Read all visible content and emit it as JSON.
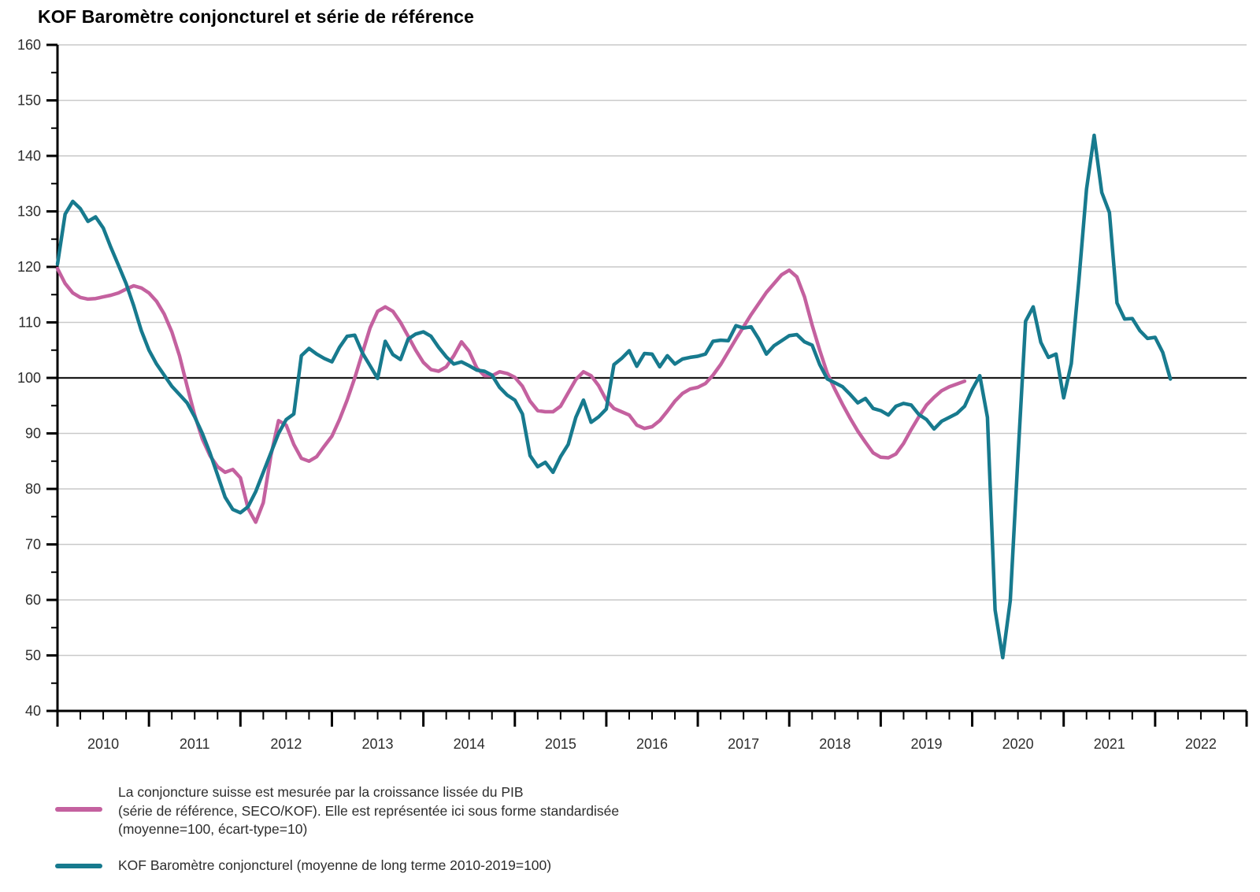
{
  "title": "KOF Baromètre conjoncturel et série de référence",
  "legend": {
    "reference_label": "La conjoncture suisse est mesurée par la croissance lissée du PIB\n(série de référence, SECO/KOF). Elle est représentée ici sous forme standardisée\n(moyenne=100, écart-type=10)",
    "barometer_label": "KOF Baromètre conjoncturel (moyenne de long terme 2010-2019=100)"
  },
  "colors": {
    "reference": "#C4619F",
    "barometer": "#177A8E",
    "grid": "#c9c9c9",
    "reference_line_100": "#1a1a1a",
    "axis": "#000000",
    "tick_label": "#2d2d2d"
  },
  "chart_data": {
    "type": "line",
    "title": "KOF Baromètre conjoncturel et série de référence",
    "xlabel": "",
    "ylabel": "",
    "x_axis": {
      "unit": "months since 2010-01",
      "axis_start_year": 2010,
      "axis_end_year": 2023,
      "year_labels": [
        "2010",
        "2011",
        "2012",
        "2013",
        "2014",
        "2015",
        "2016",
        "2017",
        "2018",
        "2019",
        "2020",
        "2021",
        "2022"
      ],
      "minor_ticks": "quarterly",
      "major_ticks": "yearly"
    },
    "y_axis": {
      "min": 40,
      "max": 160,
      "major_tick_step": 10,
      "minor_tick_step": 5,
      "tick_labels": [
        40,
        50,
        60,
        70,
        80,
        90,
        100,
        110,
        120,
        130,
        140,
        150,
        160
      ],
      "reference_line": 100
    },
    "grid": true,
    "legend_position": "bottom-left",
    "series": [
      {
        "name": "reference",
        "label": "La conjoncture suisse est mesurée par la croissance lissée du PIB (série de référence, SECO/KOF), forme standardisée (moyenne=100, écart-type=10)",
        "color": "#C4619F",
        "start": "2010-01",
        "end": "2019-12",
        "frequency": "monthly",
        "values": [
          119.7,
          117.0,
          115.3,
          114.5,
          114.2,
          114.3,
          114.6,
          114.9,
          115.3,
          116.0,
          116.6,
          116.2,
          115.3,
          113.8,
          111.5,
          108.3,
          104.0,
          98.5,
          93.3,
          89.0,
          86.0,
          84.0,
          83.0,
          83.5,
          82.0,
          76.5,
          74.0,
          77.5,
          86.0,
          92.3,
          91.5,
          88.0,
          85.5,
          85.0,
          85.8,
          87.7,
          89.5,
          92.5,
          96.0,
          100.0,
          104.5,
          109.0,
          112.0,
          112.8,
          112.0,
          110.0,
          107.5,
          105.0,
          102.8,
          101.5,
          101.2,
          102.0,
          104.0,
          106.5,
          104.8,
          101.8,
          100.4,
          100.4,
          101.1,
          100.8,
          100.1,
          98.5,
          95.8,
          94.1,
          93.9,
          93.9,
          94.9,
          97.3,
          99.7,
          101.1,
          100.4,
          98.6,
          96.0,
          94.5,
          93.9,
          93.3,
          91.5,
          90.9,
          91.2,
          92.3,
          94.0,
          95.8,
          97.2,
          98.0,
          98.3,
          99.0,
          100.5,
          102.4,
          104.7,
          107.0,
          109.2,
          111.4,
          113.4,
          115.4,
          117.0,
          118.6,
          119.4,
          118.2,
          114.6,
          109.5,
          105.0,
          100.8,
          97.9,
          95.2,
          92.7,
          90.4,
          88.4,
          86.5,
          85.7,
          85.6,
          86.3,
          88.2,
          90.7,
          93.0,
          95.1,
          96.5,
          97.7,
          98.4,
          98.9,
          99.4
        ]
      },
      {
        "name": "barometer",
        "label": "KOF Baromètre conjoncturel (moyenne de long terme 2010-2019=100)",
        "color": "#177A8E",
        "start": "2010-01",
        "end": "2022-03",
        "frequency": "monthly",
        "values": [
          120.5,
          129.5,
          131.8,
          130.5,
          128.2,
          129.0,
          127.0,
          123.5,
          120.3,
          117.0,
          113.0,
          108.5,
          105.0,
          102.5,
          100.5,
          98.5,
          97.0,
          95.5,
          93.0,
          90.0,
          86.5,
          82.5,
          78.5,
          76.3,
          75.7,
          76.8,
          79.5,
          83.0,
          86.5,
          90.0,
          92.5,
          93.5,
          104.0,
          105.3,
          104.3,
          103.5,
          102.9,
          105.5,
          107.5,
          107.7,
          104.5,
          102.2,
          99.9,
          106.6,
          104.2,
          103.3,
          107.0,
          107.9,
          108.3,
          107.5,
          105.5,
          103.8,
          102.5,
          102.9,
          102.2,
          101.4,
          101.2,
          100.5,
          98.3,
          96.9,
          96.0,
          93.5,
          86.0,
          84.0,
          84.8,
          83.0,
          85.8,
          88.0,
          92.9,
          96.0,
          92.0,
          93.0,
          94.4,
          102.4,
          103.5,
          104.9,
          102.1,
          104.4,
          104.3,
          102.0,
          104.0,
          102.5,
          103.4,
          103.7,
          103.9,
          104.3,
          106.6,
          106.8,
          106.7,
          109.4,
          109.0,
          109.2,
          107.0,
          104.3,
          105.8,
          106.7,
          107.6,
          107.8,
          106.5,
          105.9,
          102.4,
          99.8,
          99.1,
          98.4,
          97.0,
          95.5,
          96.3,
          94.5,
          94.1,
          93.3,
          94.9,
          95.4,
          95.1,
          93.4,
          92.5,
          90.8,
          92.2,
          92.9,
          93.6,
          94.9,
          97.9,
          100.4,
          92.9,
          58.2,
          49.6,
          59.9,
          85.6,
          110.2,
          112.8,
          106.4,
          103.7,
          104.3,
          96.4,
          102.6,
          117.7,
          134.0,
          143.7,
          133.4,
          129.8,
          113.5,
          110.6,
          110.7,
          108.5,
          107.1,
          107.3,
          104.6,
          99.8
        ]
      }
    ]
  }
}
